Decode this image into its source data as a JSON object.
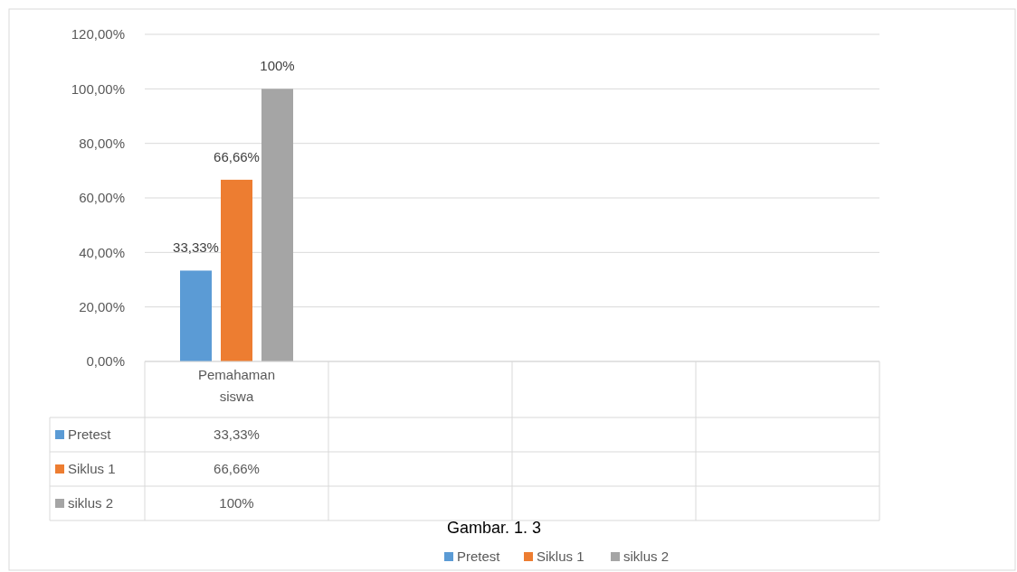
{
  "chart_data": {
    "type": "bar",
    "title": "Gambar. 1. 3",
    "categories": [
      "Pemahaman siswa",
      null,
      null,
      null
    ],
    "series": [
      {
        "name": "Pretest",
        "color": "#5b9bd5",
        "values": [
          33.33,
          null,
          null,
          null
        ],
        "value_labels": [
          "33,33%",
          null,
          null,
          null
        ]
      },
      {
        "name": "Siklus 1",
        "color": "#ed7d31",
        "values": [
          66.66,
          null,
          null,
          null
        ],
        "value_labels": [
          "66,66%",
          null,
          null,
          null
        ]
      },
      {
        "name": "siklus 2",
        "color": "#a5a5a5",
        "values": [
          100,
          null,
          null,
          null
        ],
        "value_labels": [
          "100%",
          null,
          null,
          null
        ]
      }
    ],
    "ylim": [
      0,
      120
    ],
    "yticks": [
      {
        "value": 0,
        "label": "0,00%"
      },
      {
        "value": 20,
        "label": "20,00%"
      },
      {
        "value": 40,
        "label": "40,00%"
      },
      {
        "value": 60,
        "label": "60,00%"
      },
      {
        "value": 80,
        "label": "80,00%"
      },
      {
        "value": 100,
        "label": "100,00%"
      },
      {
        "value": 120,
        "label": "120,00%"
      }
    ],
    "grid": "y",
    "legend": "bottom"
  }
}
